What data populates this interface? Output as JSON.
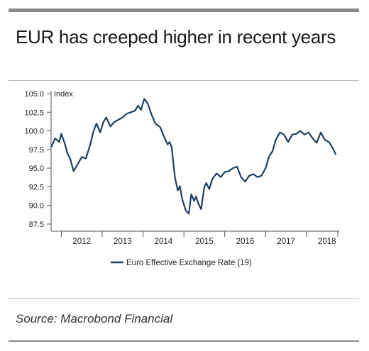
{
  "title": "EUR has creeped higher in recent years",
  "source": "Source: Macrobond Financial",
  "colors": {
    "line": "#1f3f63",
    "axis": "#555555"
  },
  "chart_data": {
    "type": "line",
    "title": "EUR has creeped higher in recent years",
    "ylabel": "Index",
    "xlabel": "",
    "ylim": [
      87.5,
      105.0
    ],
    "xlim": [
      2011.75,
      2018.8
    ],
    "yticks": [
      "105.0",
      "102.5",
      "100.0",
      "97.5",
      "95.0",
      "92.5",
      "90.0",
      "87.5"
    ],
    "ytick_values": [
      105.0,
      102.5,
      100.0,
      97.5,
      95.0,
      92.5,
      90.0,
      87.5
    ],
    "xticks": [
      "2012",
      "2013",
      "2014",
      "2015",
      "2016",
      "2017",
      "2018"
    ],
    "grid": false,
    "legend_position": "bottom",
    "series": [
      {
        "name": "Euro Effective Exchange Rate (19)",
        "x": [
          2011.75,
          2011.85,
          2011.95,
          2012.0,
          2012.08,
          2012.15,
          2012.22,
          2012.3,
          2012.4,
          2012.5,
          2012.6,
          2012.7,
          2012.78,
          2012.86,
          2012.95,
          2013.03,
          2013.1,
          2013.2,
          2013.3,
          2013.4,
          2013.5,
          2013.6,
          2013.7,
          2013.8,
          2013.88,
          2013.95,
          2014.03,
          2014.12,
          2014.2,
          2014.3,
          2014.42,
          2014.5,
          2014.6,
          2014.65,
          2014.7,
          2014.78,
          2014.85,
          2014.9,
          2014.96,
          2015.0,
          2015.05,
          2015.12,
          2015.18,
          2015.25,
          2015.3,
          2015.35,
          2015.42,
          2015.5,
          2015.55,
          2015.62,
          2015.7,
          2015.8,
          2015.9,
          2016.0,
          2016.1,
          2016.2,
          2016.3,
          2016.4,
          2016.5,
          2016.6,
          2016.7,
          2016.8,
          2016.9,
          2017.0,
          2017.08,
          2017.17,
          2017.25,
          2017.35,
          2017.45,
          2017.55,
          2017.65,
          2017.75,
          2017.85,
          2017.95,
          2018.05,
          2018.15,
          2018.25,
          2018.35,
          2018.45,
          2018.55,
          2018.65,
          2018.72
        ],
        "values": [
          97.8,
          99.0,
          98.5,
          99.6,
          98.4,
          97.0,
          96.2,
          94.6,
          95.5,
          96.5,
          96.3,
          98.0,
          99.8,
          101.0,
          99.8,
          101.2,
          101.8,
          100.6,
          101.2,
          101.5,
          101.8,
          102.3,
          102.5,
          102.7,
          103.4,
          102.8,
          104.3,
          103.6,
          102.3,
          101.0,
          100.5,
          99.4,
          98.2,
          98.5,
          97.8,
          93.8,
          92.0,
          92.6,
          90.8,
          90.1,
          89.3,
          88.9,
          91.5,
          90.6,
          91.2,
          90.3,
          89.5,
          92.5,
          93.0,
          92.2,
          93.6,
          94.3,
          93.8,
          94.5,
          94.6,
          95.0,
          95.2,
          93.8,
          93.2,
          94.0,
          94.2,
          93.8,
          94.0,
          95.0,
          96.5,
          97.3,
          98.8,
          99.8,
          99.5,
          98.5,
          99.5,
          99.6,
          100.0,
          99.5,
          99.8,
          99.0,
          98.4,
          99.8,
          98.8,
          98.5,
          97.6,
          96.8
        ]
      }
    ]
  }
}
